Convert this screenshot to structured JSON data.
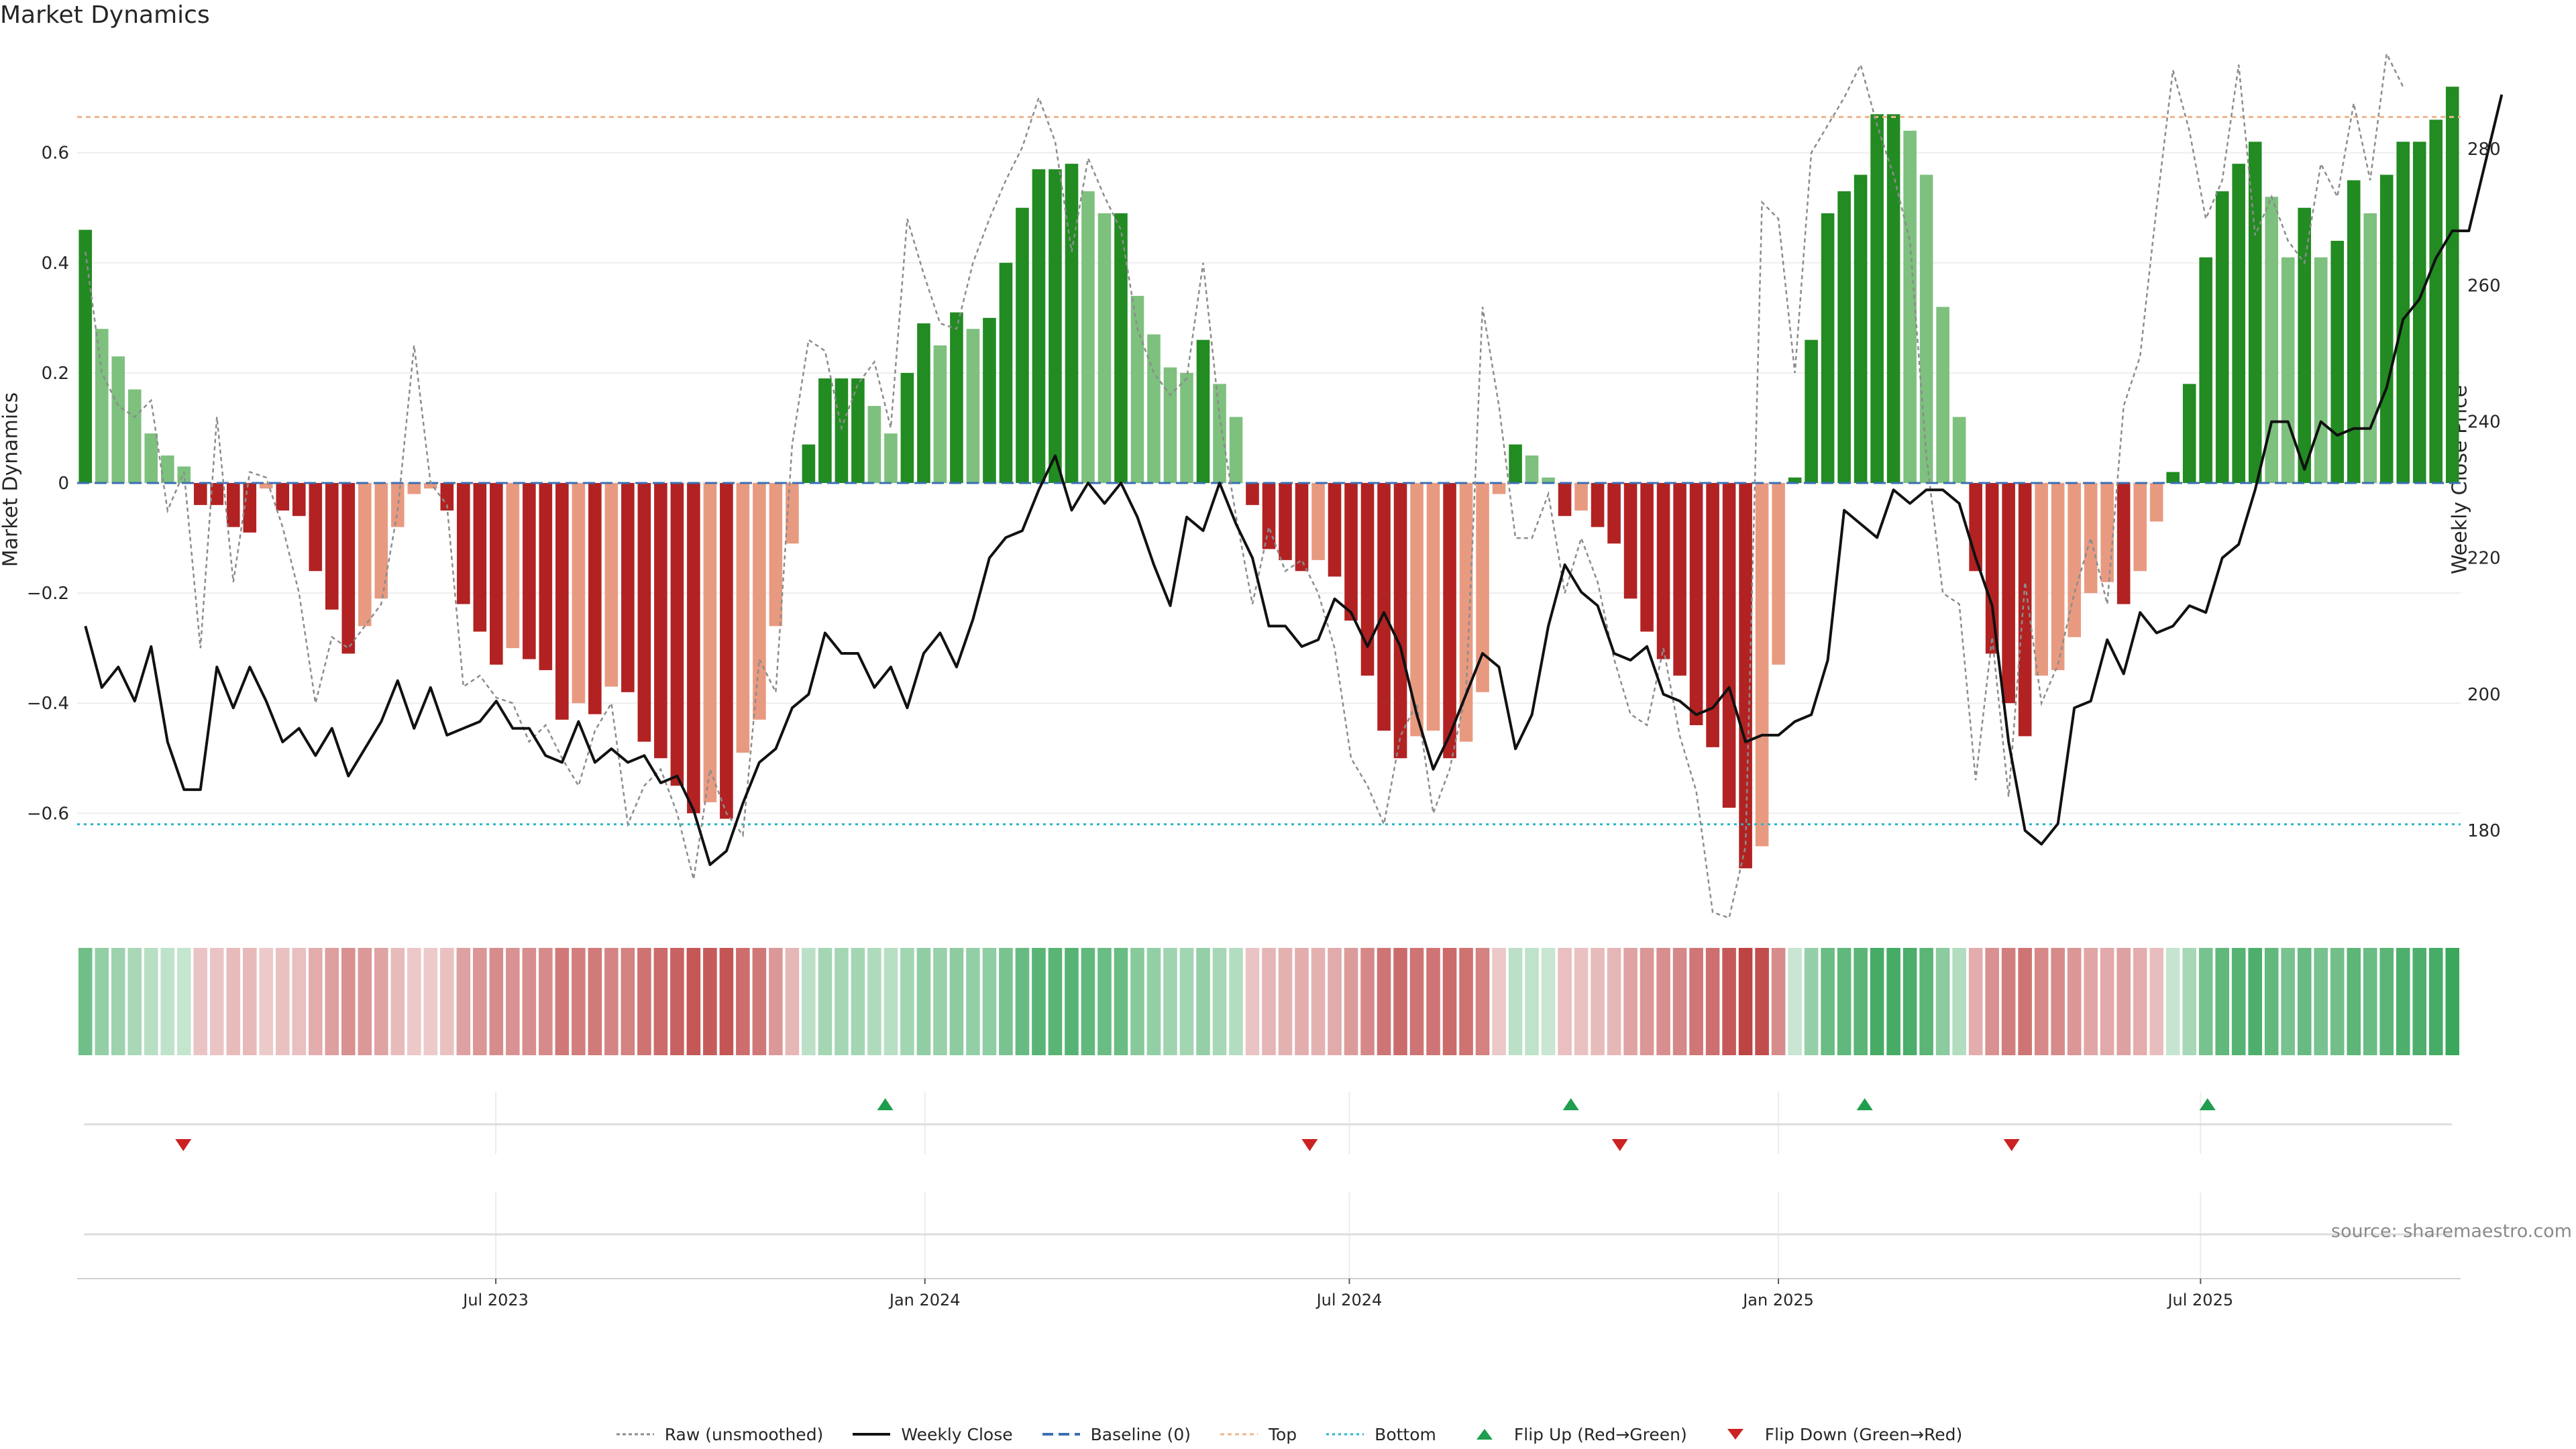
{
  "title": "Market Dynamics",
  "source": "source: sharemaestro.com",
  "colors": {
    "pos_strong": "#228b22",
    "pos_weak": "#7ec07e",
    "neg_strong": "#b22222",
    "neg_weak": "#e89a80",
    "price": "#111111",
    "raw": "#8c8c8c",
    "baseline": "#3b6fb3",
    "top": "#f0b48c",
    "bottom": "#27b5c9",
    "flip_up": "#1e9e4e",
    "flip_down": "#cc2222"
  },
  "chart_data": {
    "type": "bar",
    "ylabel": "Market Dynamics",
    "ylabel_right": "Weekly Close Price",
    "ylim": [
      -0.78,
      0.78
    ],
    "ylim_right": [
      168,
      294
    ],
    "yticks": [
      -0.6,
      -0.4,
      -0.2,
      0,
      0.2,
      0.4,
      0.6
    ],
    "yticks_right": [
      180,
      200,
      220,
      240,
      260,
      280
    ],
    "x_start": "2023-01-06",
    "x_end": "2025-10-17",
    "x_ticks": [
      {
        "date": "2023-07-01",
        "label": "Jul 2023"
      },
      {
        "date": "2024-01-01",
        "label": "Jan 2024"
      },
      {
        "date": "2024-07-01",
        "label": "Jul 2024"
      },
      {
        "date": "2025-01-01",
        "label": "Jan 2025"
      },
      {
        "date": "2025-07-01",
        "label": "Jul 2025"
      }
    ],
    "top": 0.665,
    "bottom": -0.62,
    "baseline": 0,
    "grid": true,
    "legend_position": "bottom",
    "dynamics": [
      0.46,
      0.28,
      0.23,
      0.17,
      0.09,
      0.05,
      0.03,
      -0.04,
      -0.04,
      -0.08,
      -0.09,
      -0.01,
      -0.05,
      -0.06,
      -0.16,
      -0.23,
      -0.31,
      -0.26,
      -0.21,
      -0.08,
      -0.02,
      -0.01,
      -0.05,
      -0.22,
      -0.27,
      -0.33,
      -0.3,
      -0.32,
      -0.34,
      -0.43,
      -0.4,
      -0.42,
      -0.37,
      -0.38,
      -0.47,
      -0.5,
      -0.55,
      -0.6,
      -0.58,
      -0.61,
      -0.49,
      -0.43,
      -0.26,
      -0.11,
      0.07,
      0.19,
      0.19,
      0.19,
      0.14,
      0.09,
      0.2,
      0.29,
      0.25,
      0.31,
      0.28,
      0.3,
      0.4,
      0.5,
      0.57,
      0.57,
      0.58,
      0.53,
      0.49,
      0.49,
      0.34,
      0.27,
      0.21,
      0.2,
      0.26,
      0.18,
      0.12,
      -0.04,
      -0.12,
      -0.14,
      -0.16,
      -0.14,
      -0.17,
      -0.25,
      -0.35,
      -0.45,
      -0.5,
      -0.46,
      -0.45,
      -0.5,
      -0.47,
      -0.38,
      -0.02,
      0.07,
      0.05,
      0.01,
      -0.06,
      -0.05,
      -0.08,
      -0.11,
      -0.21,
      -0.27,
      -0.32,
      -0.35,
      -0.44,
      -0.48,
      -0.59,
      -0.7,
      -0.66,
      -0.33,
      0.01,
      0.26,
      0.49,
      0.53,
      0.56,
      0.67,
      0.67,
      0.64,
      0.56,
      0.32,
      0.12,
      -0.16,
      -0.31,
      -0.4,
      -0.46,
      -0.35,
      -0.34,
      -0.28,
      -0.2,
      -0.18,
      -0.22,
      -0.16,
      -0.07,
      0.02,
      0.18,
      0.41,
      0.53,
      0.58,
      0.62,
      0.52,
      0.41,
      0.5,
      0.41,
      0.44,
      0.55,
      0.49,
      0.56,
      0.62,
      0.62,
      0.66,
      0.72
    ],
    "raw": [
      0.42,
      0.2,
      0.14,
      0.12,
      0.15,
      -0.05,
      0.02,
      -0.3,
      0.12,
      -0.18,
      0.02,
      0.01,
      -0.08,
      -0.2,
      -0.4,
      -0.28,
      -0.3,
      -0.26,
      -0.22,
      -0.05,
      0.25,
      0.0,
      -0.04,
      -0.37,
      -0.35,
      -0.39,
      -0.4,
      -0.47,
      -0.44,
      -0.5,
      -0.55,
      -0.45,
      -0.4,
      -0.62,
      -0.55,
      -0.52,
      -0.6,
      -0.72,
      -0.52,
      -0.6,
      -0.64,
      -0.32,
      -0.38,
      0.07,
      0.26,
      0.24,
      0.1,
      0.18,
      0.22,
      0.1,
      0.48,
      0.38,
      0.29,
      0.28,
      0.4,
      0.48,
      0.55,
      0.61,
      0.7,
      0.62,
      0.42,
      0.59,
      0.52,
      0.46,
      0.28,
      0.2,
      0.16,
      0.19,
      0.4,
      0.12,
      -0.06,
      -0.22,
      -0.08,
      -0.16,
      -0.14,
      -0.2,
      -0.3,
      -0.5,
      -0.55,
      -0.62,
      -0.46,
      -0.4,
      -0.6,
      -0.52,
      -0.38,
      0.32,
      0.14,
      -0.1,
      -0.1,
      -0.02,
      -0.2,
      -0.1,
      -0.18,
      -0.32,
      -0.42,
      -0.44,
      -0.3,
      -0.46,
      -0.56,
      -0.78,
      -0.79,
      -0.66,
      0.51,
      0.48,
      0.2,
      0.6,
      0.65,
      0.7,
      0.76,
      0.65,
      0.56,
      0.44,
      0.05,
      -0.2,
      -0.22,
      -0.54,
      -0.28,
      -0.57,
      -0.18,
      -0.4,
      -0.33,
      -0.2,
      -0.1,
      -0.22,
      0.14,
      0.23,
      0.5,
      0.75,
      0.64,
      0.48,
      0.55,
      0.76,
      0.45,
      0.52,
      0.44,
      0.4,
      0.58,
      0.52,
      0.69,
      0.55,
      0.78,
      0.72
    ],
    "price": [
      210,
      201,
      204,
      199,
      207,
      193,
      186,
      186,
      204,
      198,
      204,
      199,
      193,
      195,
      191,
      195,
      188,
      192,
      196,
      202,
      195,
      201,
      194,
      195,
      196,
      199,
      195,
      195,
      191,
      190,
      196,
      190,
      192,
      190,
      191,
      187,
      188,
      183,
      175,
      177,
      184,
      190,
      192,
      198,
      200,
      209,
      206,
      206,
      201,
      204,
      198,
      206,
      209,
      204,
      211,
      220,
      223,
      224,
      230,
      235,
      227,
      231,
      228,
      231,
      226,
      219,
      213,
      226,
      224,
      231,
      225,
      220,
      210,
      210,
      207,
      208,
      214,
      212,
      207,
      212,
      207,
      197,
      189,
      194,
      200,
      206,
      204,
      192,
      197,
      210,
      219,
      215,
      213,
      206,
      205,
      207,
      200,
      199,
      197,
      198,
      201,
      193,
      194,
      194,
      196,
      197,
      205,
      227,
      225,
      223,
      230,
      228,
      230,
      230,
      228,
      220,
      213,
      193,
      180,
      178,
      181,
      198,
      199,
      208,
      203,
      212,
      209,
      210,
      213,
      212,
      220,
      222,
      230,
      240,
      240,
      233,
      240,
      238,
      239,
      239,
      245,
      255,
      258,
      264,
      268,
      268,
      278,
      288
    ],
    "flips_up": [
      "2023-12-15",
      "2024-10-04",
      "2025-02-07",
      "2025-07-04"
    ],
    "flips_down": [
      "2023-02-17",
      "2024-06-14",
      "2024-10-25",
      "2025-04-11"
    ]
  },
  "legend": [
    {
      "label": "Raw (unsmoothed)",
      "symbol": "raw"
    },
    {
      "label": "Weekly Close",
      "symbol": "price"
    },
    {
      "label": "Baseline (0)",
      "symbol": "baseline"
    },
    {
      "label": "Top",
      "symbol": "top"
    },
    {
      "label": "Bottom",
      "symbol": "bottom"
    },
    {
      "label": "Flip Up (Red→Green)",
      "symbol": "flip_up"
    },
    {
      "label": "Flip Down (Green→Red)",
      "symbol": "flip_down"
    }
  ]
}
